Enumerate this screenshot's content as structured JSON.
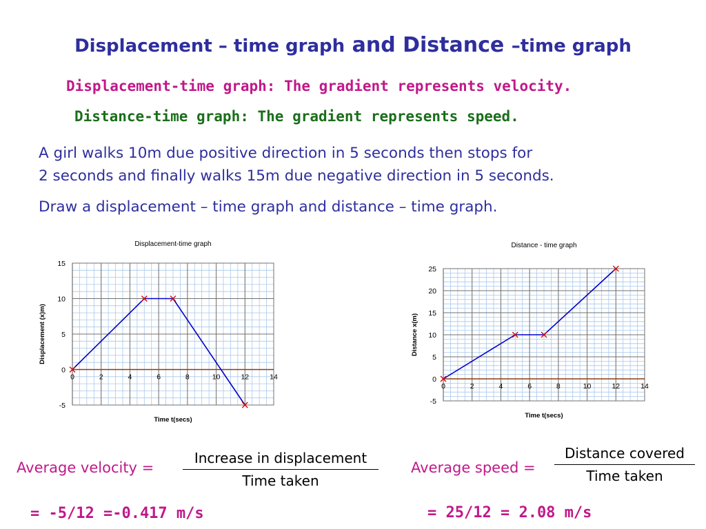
{
  "title": {
    "part1": "Displacement – time graph",
    "part2": " and Distance ",
    "part3": "–time graph"
  },
  "subtitles": {
    "displacement": "Displacement-time graph: The gradient represents velocity.",
    "distance": "Distance-time graph: The gradient represents speed."
  },
  "problem": {
    "line1": "A girl walks 10m due positive direction in 5 seconds then stops for",
    "line2": "2 seconds and finally walks 15m due negative direction in 5 seconds.",
    "question": "Draw a displacement – time graph and distance – time graph."
  },
  "colors": {
    "title": "#2e2e9e",
    "accent": "#c0188a",
    "green": "#1a6e1a",
    "line": "#0000cc",
    "marker": "#dd0000",
    "grid_minor": "#a8c8ec",
    "grid_major": "#707070",
    "axis": "#8b3a0e"
  },
  "chart_data": [
    {
      "type": "line",
      "title": "Displacement-time graph",
      "xlabel": "Time t(secs)",
      "ylabel": "Displacement (x)m)",
      "xlim": [
        0,
        14
      ],
      "ylim": [
        -5,
        15
      ],
      "xticks": [
        0,
        2,
        4,
        6,
        8,
        10,
        12,
        14
      ],
      "yticks": [
        -5,
        0,
        5,
        10,
        15
      ],
      "grid": true,
      "series": [
        {
          "x": [
            0,
            5,
            7,
            12
          ],
          "y": [
            0,
            10,
            10,
            -5
          ]
        }
      ]
    },
    {
      "type": "line",
      "title": "Distance - time graph",
      "xlabel": "Time t(secs)",
      "ylabel": "Distance x(m)",
      "xlim": [
        0,
        14
      ],
      "ylim": [
        -5,
        25
      ],
      "xticks": [
        0,
        2,
        4,
        6,
        8,
        10,
        12,
        14
      ],
      "yticks": [
        -5,
        0,
        5,
        10,
        15,
        20,
        25
      ],
      "grid": true,
      "series": [
        {
          "x": [
            0,
            5,
            7,
            12
          ],
          "y": [
            0,
            10,
            10,
            25
          ]
        }
      ]
    }
  ],
  "formulas": {
    "velocity": {
      "label": "Average velocity =",
      "numerator": "Increase in displacement",
      "denominator": "Time taken",
      "result": "= -5/12 =-0.417 m/s"
    },
    "speed": {
      "label": "Average speed =",
      "numerator": "Distance covered",
      "denominator": "Time taken",
      "result": "= 25/12 = 2.08 m/s"
    }
  }
}
